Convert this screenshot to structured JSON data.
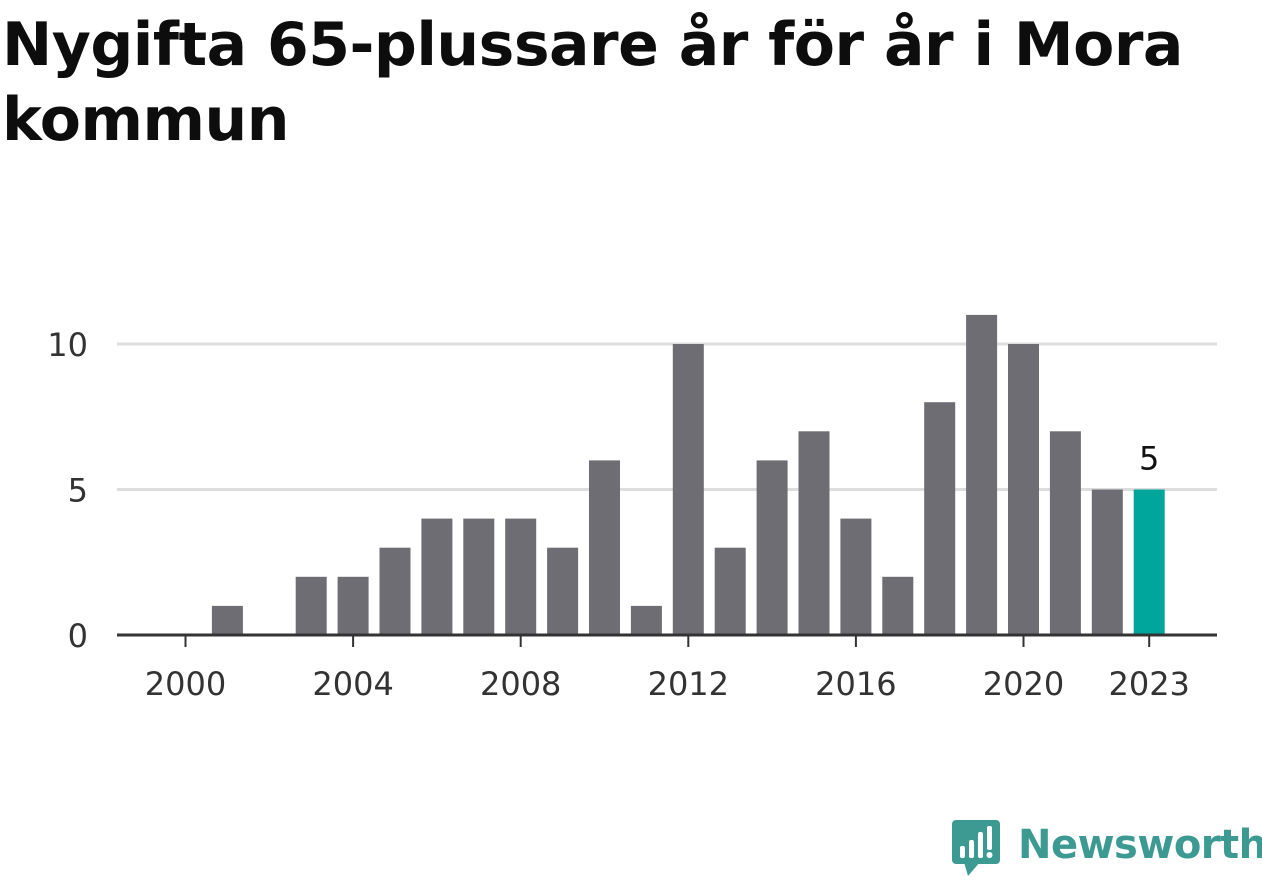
{
  "title": "Nygifta 65-plussare år för år i Mora kommun",
  "chart_data": {
    "type": "bar",
    "title": "Nygifta 65-plussare år för år i Mora kommun",
    "xlabel": "",
    "ylabel": "",
    "categories": [
      "2000",
      "2001",
      "2002",
      "2003",
      "2004",
      "2005",
      "2006",
      "2007",
      "2008",
      "2009",
      "2010",
      "2011",
      "2012",
      "2013",
      "2014",
      "2015",
      "2016",
      "2017",
      "2018",
      "2019",
      "2020",
      "2021",
      "2022",
      "2023"
    ],
    "values": [
      0,
      1,
      0,
      2,
      2,
      3,
      4,
      4,
      4,
      3,
      6,
      1,
      10,
      3,
      6,
      7,
      4,
      2,
      8,
      11,
      10,
      7,
      5,
      5
    ],
    "ylim": [
      0,
      11
    ],
    "yticks": [
      0,
      5,
      10
    ],
    "xticks": [
      "2000",
      "2004",
      "2008",
      "2012",
      "2016",
      "2020",
      "2023"
    ],
    "highlight": {
      "category": "2023",
      "label": "5"
    },
    "grid": true,
    "colors": {
      "bar": "#6e6d73",
      "highlight": "#00a59b",
      "grid": "#dddddd",
      "axis": "#333333"
    }
  },
  "brand": {
    "name": "Newsworthy",
    "icon": "newsworthy-logo-icon",
    "color": "#3d9a93"
  }
}
